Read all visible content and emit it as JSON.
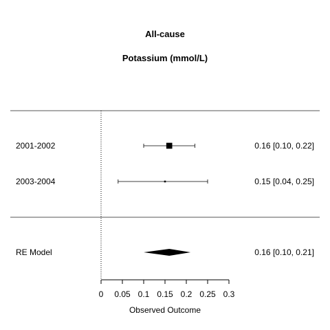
{
  "chart_data": {
    "type": "forest",
    "title": "All-cause",
    "subtitle": "Potassium (mmol/L)",
    "xlabel": "Observed Outcome",
    "xlim": [
      0,
      0.3
    ],
    "x_ticks": [
      "0",
      "0.05",
      "0.1",
      "0.15",
      "0.2",
      "0.25",
      "0.3"
    ],
    "x_tick_values": [
      0,
      0.05,
      0.1,
      0.15,
      0.2,
      0.25,
      0.3
    ],
    "reference_line": 0,
    "studies": [
      {
        "label": "2001-2002",
        "estimate": 0.16,
        "lower": 0.1,
        "upper": 0.22,
        "weight": 0.92,
        "annotation": "0.16 [0.10, 0.22]"
      },
      {
        "label": "2003-2004",
        "estimate": 0.15,
        "lower": 0.04,
        "upper": 0.25,
        "weight": 0.08,
        "annotation": "0.15 [0.04, 0.25]"
      }
    ],
    "summary": {
      "label": "RE Model",
      "estimate": 0.16,
      "lower": 0.1,
      "upper": 0.21,
      "annotation": "0.16 [0.10, 0.21]"
    }
  }
}
